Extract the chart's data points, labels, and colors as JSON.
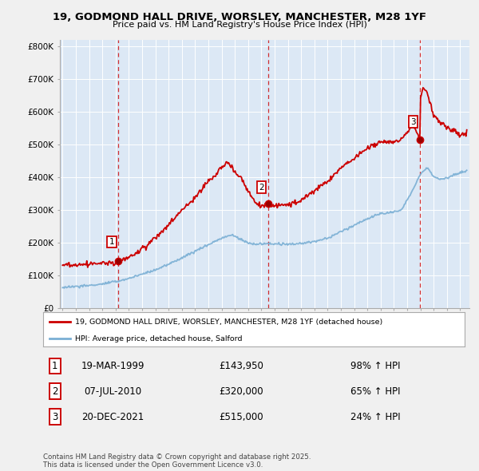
{
  "title": "19, GODMOND HALL DRIVE, WORSLEY, MANCHESTER, M28 1YF",
  "subtitle": "Price paid vs. HM Land Registry's House Price Index (HPI)",
  "ylabel_ticks": [
    "£0",
    "£100K",
    "£200K",
    "£300K",
    "£400K",
    "£500K",
    "£600K",
    "£700K",
    "£800K"
  ],
  "ytick_values": [
    0,
    100000,
    200000,
    300000,
    400000,
    500000,
    600000,
    700000,
    800000
  ],
  "ylim": [
    0,
    820000
  ],
  "xlim_start": 1994.8,
  "xlim_end": 2025.7,
  "legend_label_red": "19, GODMOND HALL DRIVE, WORSLEY, MANCHESTER, M28 1YF (detached house)",
  "legend_label_blue": "HPI: Average price, detached house, Salford",
  "transactions": [
    {
      "num": 1,
      "date": "19-MAR-1999",
      "price": 143950,
      "pct": "98%",
      "dir": "↑",
      "year": 1999.21
    },
    {
      "num": 2,
      "date": "07-JUL-2010",
      "price": 320000,
      "pct": "65%",
      "dir": "↑",
      "year": 2010.52
    },
    {
      "num": 3,
      "date": "20-DEC-2021",
      "price": 515000,
      "pct": "24%",
      "dir": "↑",
      "year": 2021.97
    }
  ],
  "footer": "Contains HM Land Registry data © Crown copyright and database right 2025.\nThis data is licensed under the Open Government Licence v3.0.",
  "bg_color": "#f0f0f0",
  "plot_bg_color": "#dce8f5",
  "red_color": "#cc0000",
  "blue_color": "#7aafd4",
  "grid_color": "#ffffff",
  "dashed_color": "#cc0000"
}
